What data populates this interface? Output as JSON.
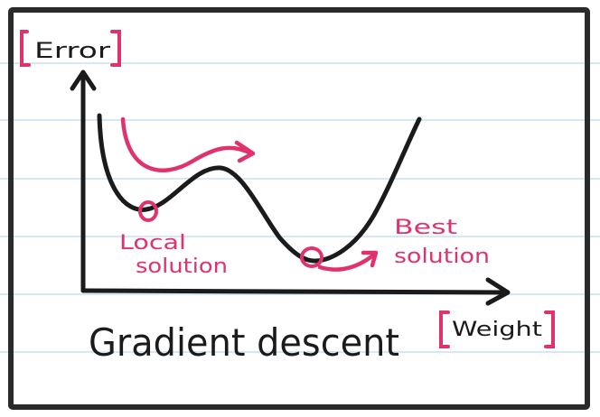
{
  "diagram": {
    "y_axis_label": "Error",
    "x_axis_label": "Weight",
    "caption": "Gradient descent",
    "local_label_line1": "Local",
    "local_label_line2": "solution",
    "best_label_line1": "Best",
    "best_label_line2": "solution"
  },
  "colors": {
    "ink": "#1b1b1b",
    "accent": "#e0336b",
    "ruled_lines": "#bcd9ee",
    "frame": "#2a2a2a",
    "paper": "#ffffff"
  }
}
